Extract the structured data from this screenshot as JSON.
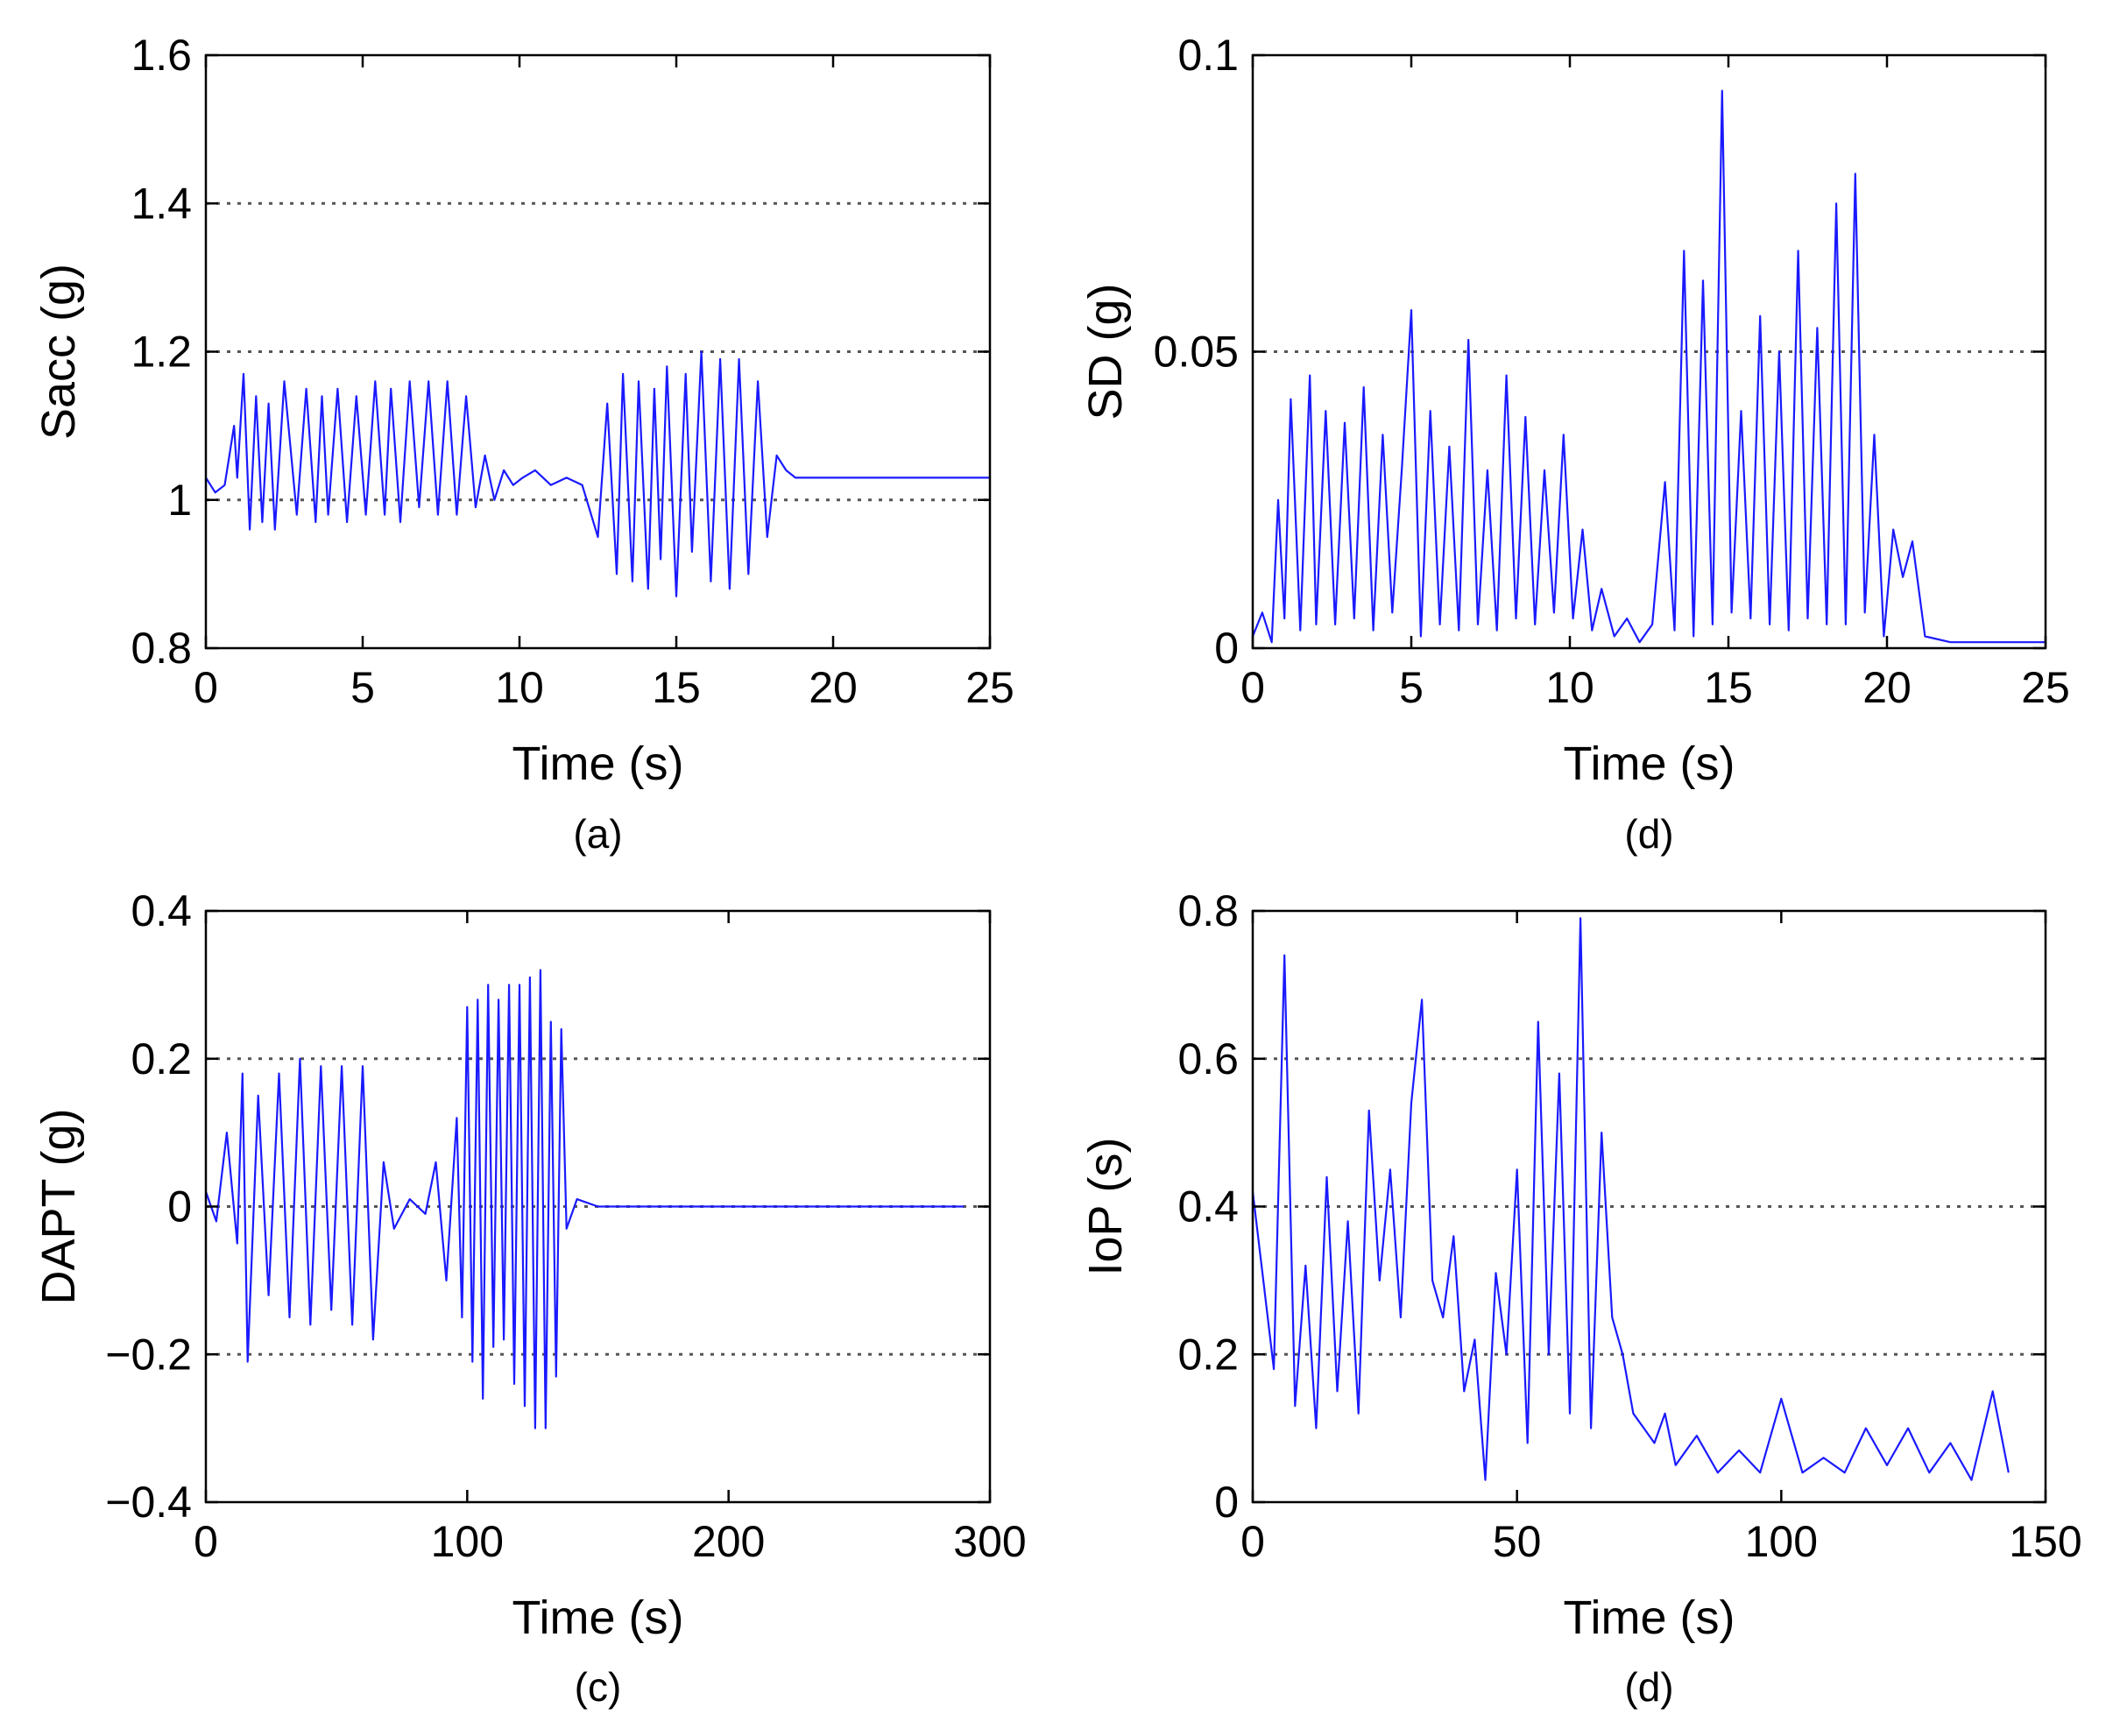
{
  "chart_data": [
    {
      "id": "a",
      "type": "line",
      "caption": "(a)",
      "xlabel": "Time (s)",
      "ylabel": "Sacc (g)",
      "xlim": [
        0,
        25
      ],
      "ylim": [
        0.8,
        1.6
      ],
      "xticks": [
        0,
        5,
        10,
        15,
        20,
        25
      ],
      "yticks": [
        0.8,
        1,
        1.2,
        1.4,
        1.6
      ],
      "xtick_labels": [
        "0",
        "5",
        "10",
        "15",
        "20",
        "25"
      ],
      "ytick_labels": [
        "0.8",
        "1",
        "1.2",
        "1.4",
        "1.6"
      ],
      "gridlines_y": [
        1,
        1.2,
        1.4
      ],
      "line_color": "#1a1aff",
      "series": [
        {
          "name": "Sacc",
          "x": [
            0,
            0.3,
            0.6,
            0.9,
            1.0,
            1.2,
            1.4,
            1.6,
            1.8,
            2.0,
            2.2,
            2.5,
            2.9,
            3.2,
            3.5,
            3.7,
            3.9,
            4.2,
            4.5,
            4.8,
            5.1,
            5.4,
            5.7,
            5.9,
            6.2,
            6.5,
            6.8,
            7.1,
            7.4,
            7.7,
            8.0,
            8.3,
            8.6,
            8.9,
            9.2,
            9.5,
            9.8,
            10.1,
            10.5,
            11.0,
            11.5,
            12.0,
            12.5,
            12.8,
            13.1,
            13.3,
            13.6,
            13.8,
            14.1,
            14.3,
            14.5,
            14.7,
            15.0,
            15.3,
            15.5,
            15.8,
            16.1,
            16.4,
            16.7,
            17.0,
            17.3,
            17.6,
            17.9,
            18.2,
            18.5,
            18.8,
            19.1,
            19.4,
            19.7,
            20.0,
            20.3,
            20.6,
            21.0,
            21.5,
            22.0,
            23.0,
            24.0,
            25.0
          ],
          "y": [
            1.03,
            1.01,
            1.02,
            1.1,
            1.03,
            1.17,
            0.96,
            1.14,
            0.97,
            1.13,
            0.96,
            1.16,
            0.98,
            1.15,
            0.97,
            1.14,
            0.98,
            1.15,
            0.97,
            1.14,
            0.98,
            1.16,
            0.98,
            1.15,
            0.97,
            1.16,
            0.99,
            1.16,
            0.98,
            1.16,
            0.98,
            1.14,
            0.99,
            1.06,
            1.0,
            1.04,
            1.02,
            1.03,
            1.04,
            1.02,
            1.03,
            1.02,
            0.95,
            1.13,
            0.9,
            1.17,
            0.89,
            1.16,
            0.88,
            1.15,
            0.92,
            1.18,
            0.87,
            1.17,
            0.93,
            1.2,
            0.89,
            1.19,
            0.88,
            1.19,
            0.9,
            1.16,
            0.95,
            1.06,
            1.04,
            1.03,
            1.03,
            1.03,
            1.03,
            1.03,
            1.03,
            1.03,
            1.03,
            1.03,
            1.03,
            1.03,
            1.03,
            1.03
          ]
        }
      ]
    },
    {
      "id": "d1",
      "type": "line",
      "caption": "(d)",
      "xlabel": "Time (s)",
      "ylabel": "SD (g)",
      "xlim": [
        0,
        25
      ],
      "ylim": [
        0,
        0.1
      ],
      "xticks": [
        0,
        5,
        10,
        15,
        20,
        25
      ],
      "yticks": [
        0,
        0.05,
        0.1
      ],
      "xtick_labels": [
        "0",
        "5",
        "10",
        "15",
        "20",
        "25"
      ],
      "ytick_labels": [
        "0",
        "0.05",
        "0.1"
      ],
      "gridlines_y": [
        0.05
      ],
      "line_color": "#1a1aff",
      "series": [
        {
          "name": "SD",
          "x": [
            0,
            0.3,
            0.6,
            0.8,
            1.0,
            1.2,
            1.5,
            1.8,
            2.0,
            2.3,
            2.6,
            2.9,
            3.2,
            3.5,
            3.8,
            4.1,
            4.4,
            4.7,
            5.0,
            5.3,
            5.6,
            5.9,
            6.2,
            6.5,
            6.8,
            7.1,
            7.4,
            7.7,
            8.0,
            8.3,
            8.6,
            8.9,
            9.2,
            9.5,
            9.8,
            10.1,
            10.4,
            10.7,
            11.0,
            11.4,
            11.8,
            12.2,
            12.6,
            13.0,
            13.3,
            13.6,
            13.9,
            14.2,
            14.5,
            14.8,
            15.1,
            15.4,
            15.7,
            16.0,
            16.3,
            16.6,
            16.9,
            17.2,
            17.5,
            17.8,
            18.1,
            18.4,
            18.7,
            19.0,
            19.3,
            19.6,
            19.9,
            20.2,
            20.5,
            20.8,
            21.2,
            22.0,
            23.0,
            24.0,
            25.0
          ],
          "y": [
            0.002,
            0.006,
            0.001,
            0.025,
            0.005,
            0.042,
            0.003,
            0.046,
            0.004,
            0.04,
            0.004,
            0.038,
            0.005,
            0.044,
            0.003,
            0.036,
            0.006,
            0.03,
            0.057,
            0.002,
            0.04,
            0.004,
            0.034,
            0.003,
            0.052,
            0.004,
            0.03,
            0.003,
            0.046,
            0.005,
            0.039,
            0.004,
            0.03,
            0.006,
            0.036,
            0.005,
            0.02,
            0.003,
            0.01,
            0.002,
            0.005,
            0.001,
            0.004,
            0.028,
            0.003,
            0.067,
            0.002,
            0.062,
            0.004,
            0.094,
            0.006,
            0.04,
            0.005,
            0.056,
            0.004,
            0.05,
            0.003,
            0.067,
            0.005,
            0.054,
            0.004,
            0.075,
            0.004,
            0.08,
            0.006,
            0.036,
            0.002,
            0.02,
            0.012,
            0.018,
            0.002,
            0.001,
            0.001,
            0.001,
            0.001
          ]
        }
      ]
    },
    {
      "id": "c",
      "type": "line",
      "caption": "(c)",
      "xlabel": "Time (s)",
      "ylabel": "DAPT (g)",
      "xlim": [
        0,
        300
      ],
      "ylim": [
        -0.4,
        0.4
      ],
      "xticks": [
        0,
        100,
        200,
        300
      ],
      "yticks": [
        -0.4,
        -0.2,
        0,
        0.2,
        0.4
      ],
      "xtick_labels": [
        "0",
        "100",
        "200",
        "300"
      ],
      "ytick_labels": [
        "−0.4",
        "−0.2",
        "0",
        "0.2",
        "0.4"
      ],
      "gridlines_y": [
        -0.2,
        0,
        0.2
      ],
      "line_color": "#1a1aff",
      "series": [
        {
          "name": "DAPT",
          "x": [
            0,
            4,
            8,
            12,
            14,
            16,
            20,
            24,
            28,
            32,
            36,
            40,
            44,
            48,
            52,
            56,
            60,
            64,
            68,
            72,
            78,
            84,
            88,
            92,
            96,
            98,
            100,
            102,
            104,
            106,
            108,
            110,
            112,
            114,
            116,
            118,
            120,
            122,
            124,
            126,
            128,
            130,
            132,
            134,
            136,
            138,
            142,
            150,
            170,
            200,
            230,
            260,
            290
          ],
          "y": [
            0.02,
            -0.02,
            0.1,
            -0.05,
            0.18,
            -0.21,
            0.15,
            -0.12,
            0.18,
            -0.15,
            0.2,
            -0.16,
            0.19,
            -0.14,
            0.19,
            -0.16,
            0.19,
            -0.18,
            0.06,
            -0.03,
            0.01,
            -0.01,
            0.06,
            -0.1,
            0.12,
            -0.15,
            0.27,
            -0.21,
            0.28,
            -0.26,
            0.3,
            -0.19,
            0.28,
            -0.18,
            0.3,
            -0.24,
            0.3,
            -0.27,
            0.31,
            -0.3,
            0.32,
            -0.3,
            0.25,
            -0.23,
            0.24,
            -0.03,
            0.01,
            0.0,
            0.0,
            0.0,
            0.0,
            0.0,
            0.0
          ]
        }
      ]
    },
    {
      "id": "d2",
      "type": "line",
      "caption": "(d)",
      "xlabel": "Time (s)",
      "ylabel": "IoP (s)",
      "xlim": [
        0,
        150
      ],
      "ylim": [
        0,
        0.8
      ],
      "xticks": [
        0,
        50,
        100,
        150
      ],
      "yticks": [
        0,
        0.2,
        0.4,
        0.6,
        0.8
      ],
      "xtick_labels": [
        "0",
        "50",
        "100",
        "150"
      ],
      "ytick_labels": [
        "0",
        "0.2",
        "0.4",
        "0.6",
        "0.8"
      ],
      "gridlines_y": [
        0.2,
        0.4,
        0.6
      ],
      "line_color": "#1a1aff",
      "series": [
        {
          "name": "IoP",
          "x": [
            0,
            2,
            4,
            6,
            8,
            10,
            12,
            14,
            16,
            18,
            20,
            22,
            24,
            26,
            28,
            30,
            32,
            34,
            36,
            38,
            40,
            42,
            44,
            46,
            48,
            50,
            52,
            54,
            56,
            58,
            60,
            62,
            64,
            66,
            68,
            70,
            72,
            74,
            76,
            78,
            80,
            84,
            88,
            92,
            96,
            100,
            104,
            108,
            112,
            116,
            120,
            124,
            128,
            132,
            136,
            140,
            143
          ],
          "y": [
            0.42,
            0.3,
            0.18,
            0.74,
            0.13,
            0.32,
            0.1,
            0.44,
            0.15,
            0.38,
            0.12,
            0.53,
            0.3,
            0.45,
            0.25,
            0.54,
            0.68,
            0.3,
            0.25,
            0.36,
            0.15,
            0.22,
            0.03,
            0.31,
            0.2,
            0.45,
            0.08,
            0.65,
            0.2,
            0.58,
            0.12,
            0.79,
            0.1,
            0.5,
            0.25,
            0.2,
            0.12,
            0.1,
            0.08,
            0.12,
            0.05,
            0.09,
            0.04,
            0.07,
            0.04,
            0.14,
            0.04,
            0.06,
            0.04,
            0.1,
            0.05,
            0.1,
            0.04,
            0.08,
            0.03,
            0.15,
            0.04
          ]
        }
      ]
    }
  ]
}
